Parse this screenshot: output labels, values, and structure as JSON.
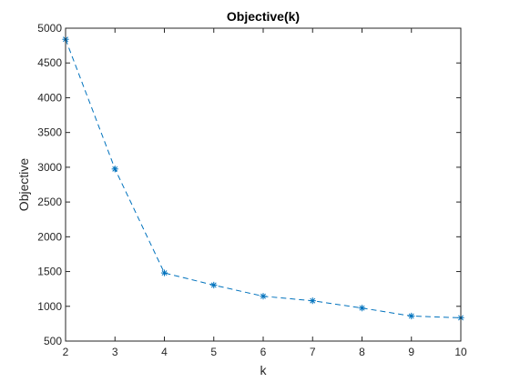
{
  "chart_data": {
    "type": "line",
    "title": "Objective(k)",
    "xlabel": "k",
    "ylabel": "Objective",
    "xlim": [
      2,
      10
    ],
    "ylim": [
      500,
      5000
    ],
    "xticks": [
      2,
      3,
      4,
      5,
      6,
      7,
      8,
      9,
      10
    ],
    "yticks": [
      500,
      1000,
      1500,
      2000,
      2500,
      3000,
      3500,
      4000,
      4500,
      5000
    ],
    "grid": false,
    "legend": "none",
    "series": [
      {
        "x": [
          2,
          3,
          4,
          5,
          6,
          7,
          8,
          9,
          10
        ],
        "y": [
          4840,
          2975,
          1480,
          1305,
          1145,
          1080,
          975,
          860,
          835
        ],
        "color": "#0072BD",
        "line_style": "dashed",
        "marker": "asterisk"
      }
    ]
  }
}
